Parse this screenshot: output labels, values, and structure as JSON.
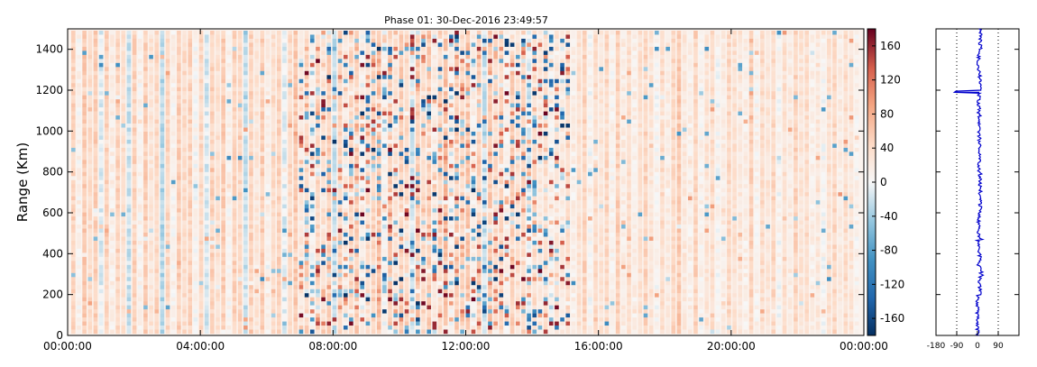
{
  "chart_data": [
    {
      "type": "heatmap",
      "title": "Phase 01: 30-Dec-2016 23:49:57",
      "ylabel": "Range (Km)",
      "xlabel": "",
      "x_ticks": [
        "00:00:00",
        "04:00:00",
        "08:00:00",
        "12:00:00",
        "16:00:00",
        "20:00:00",
        "00:00:00"
      ],
      "x_range_hours": [
        0,
        24
      ],
      "y_ticks": [
        0,
        200,
        400,
        600,
        800,
        1000,
        1200,
        1400
      ],
      "ylim": [
        0,
        1500
      ],
      "grid": false,
      "colormap": "RdBu_r",
      "colors": {
        "low": "#053061",
        "mid": "#f7f7f7",
        "high": "#67001f",
        "line": "#0000cc"
      },
      "colorbar": {
        "ticks": [
          160,
          120,
          80,
          40,
          0,
          -40,
          -80,
          -120,
          -160
        ],
        "range": [
          -180,
          180
        ]
      },
      "column_mean_phase": [
        50,
        10,
        60,
        40,
        55,
        -10,
        50,
        15,
        50,
        35,
        -20,
        50,
        10,
        55,
        30,
        45,
        -30,
        45,
        10,
        55,
        40,
        50,
        5,
        45,
        -15,
        50,
        35,
        55,
        10,
        50,
        45,
        -20,
        50,
        30,
        55,
        15,
        40,
        50,
        -10,
        45,
        60,
        25,
        50,
        5,
        45,
        35,
        55,
        -25,
        50,
        20,
        45,
        55,
        10,
        40,
        50,
        65,
        5,
        60,
        30,
        55,
        45,
        -15,
        60,
        40,
        55,
        20,
        50,
        70,
        10,
        55,
        45,
        65,
        15,
        55,
        -20,
        60,
        40,
        50,
        10,
        55,
        35,
        45,
        -10,
        40,
        25,
        35,
        10,
        30,
        20,
        40,
        15,
        35,
        50,
        5,
        40,
        30,
        45,
        10,
        55,
        20,
        40,
        15,
        35,
        50,
        30,
        5,
        40,
        20,
        45,
        60,
        25,
        15,
        50,
        10,
        30,
        40,
        5,
        20,
        45,
        35,
        25,
        15,
        50,
        10,
        40,
        30,
        45,
        5,
        35,
        20,
        50,
        30,
        40,
        15,
        25,
        5,
        35,
        45,
        20,
        40,
        30,
        10
      ]
    },
    {
      "type": "line",
      "title": "",
      "xlabel": "",
      "ylabel": "",
      "x_ticks": [
        -180,
        -90,
        0,
        90
      ],
      "xlim": [
        -180,
        180
      ],
      "ylim": [
        0,
        1500
      ],
      "grid": false,
      "series": [
        {
          "description_points": [
            [
              0,
              0
            ],
            [
              10,
              200
            ],
            [
              5,
              400
            ],
            [
              12,
              600
            ],
            [
              8,
              800
            ],
            [
              6,
              1000
            ],
            [
              -100,
              1190
            ],
            [
              10,
              1200
            ],
            [
              5,
              1300
            ],
            [
              12,
              1400
            ],
            [
              8,
              1500
            ]
          ]
        }
      ]
    }
  ]
}
